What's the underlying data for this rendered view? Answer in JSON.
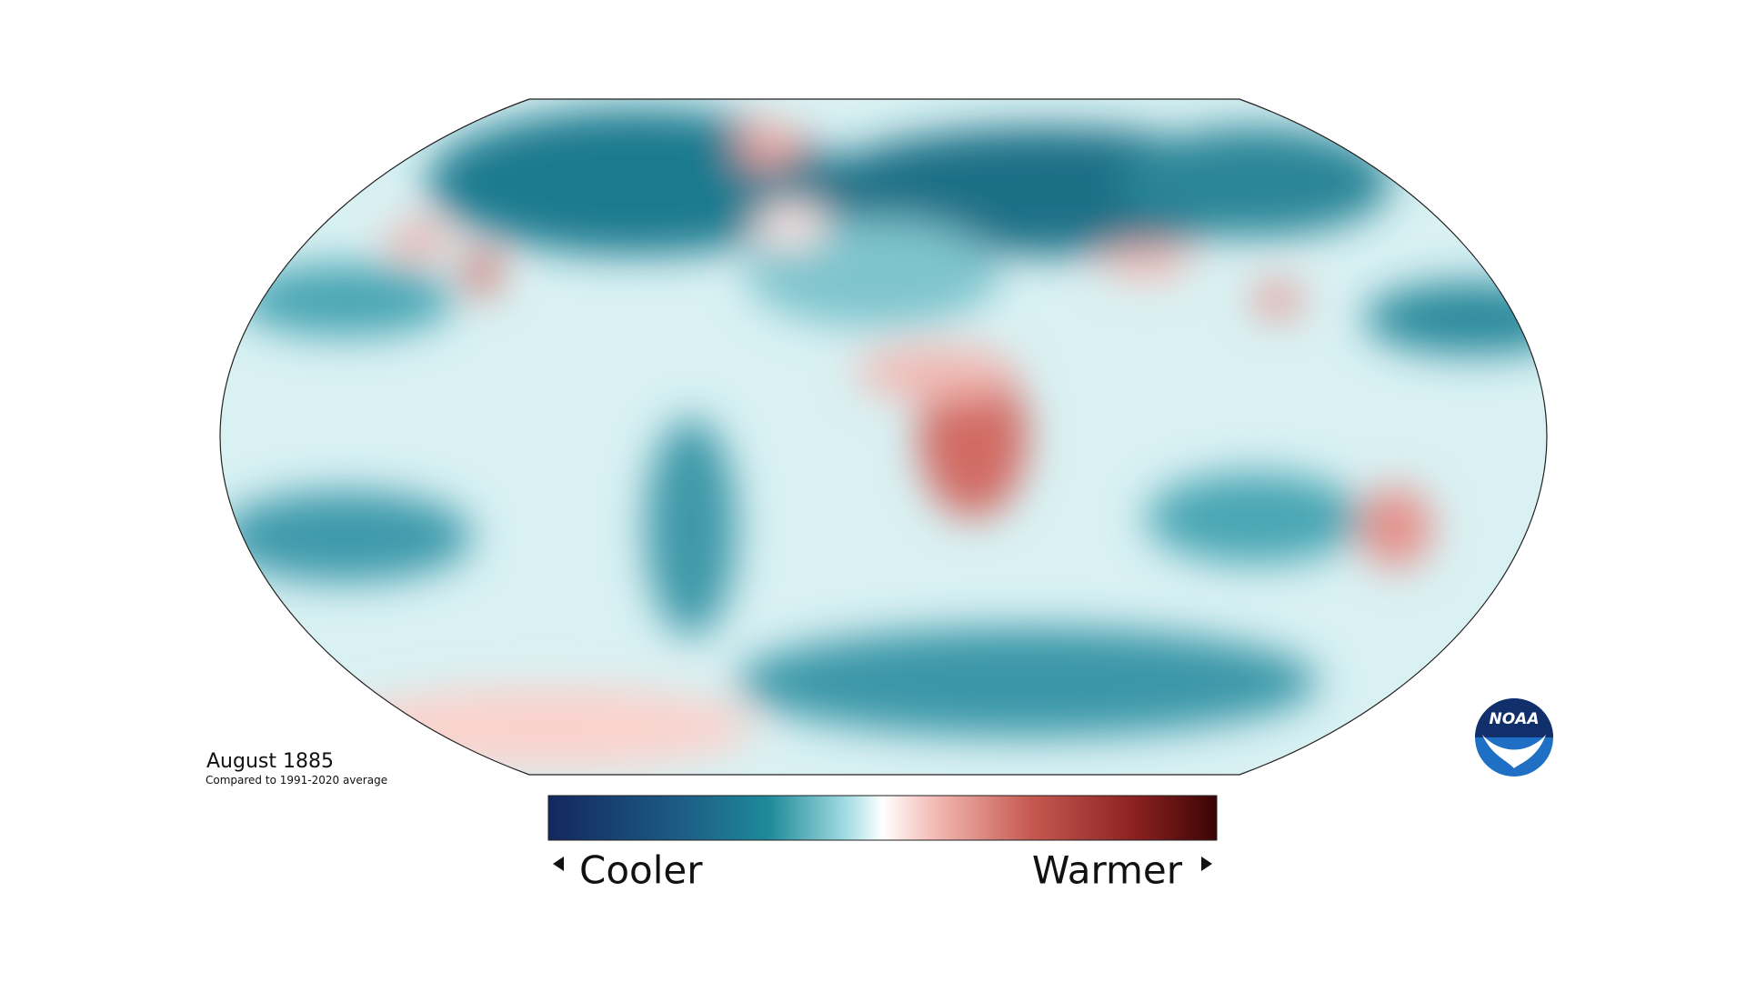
{
  "caption": {
    "title": "August 1885",
    "subtitle": "Compared to 1991-2020 average"
  },
  "legend": {
    "low_label": "Cooler",
    "high_label": "Warmer"
  },
  "logo": {
    "text": "NOAA"
  }
}
